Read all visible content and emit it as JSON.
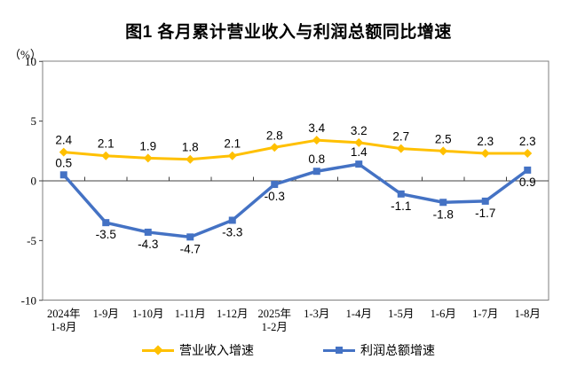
{
  "title": "图1  各月累计营业收入与利润总额同比增速",
  "y_axis": {
    "unit": "（%）",
    "ticks": [
      10,
      5,
      0,
      -5,
      -10
    ]
  },
  "chart_data": {
    "type": "line",
    "title": "图1  各月累计营业收入与利润总额同比增速",
    "xlabel": "",
    "ylabel": "(%)",
    "ylim": [
      -10,
      10
    ],
    "grid": false,
    "legend_position": "bottom",
    "categories": [
      "2024年\n1-8月",
      "1-9月",
      "1-10月",
      "1-11月",
      "1-12月",
      "2025年\n1-2月",
      "1-3月",
      "1-4月",
      "1-5月",
      "1-6月",
      "1-7月",
      "1-8月"
    ],
    "series": [
      {
        "name": "营业收入增速",
        "color": "#FFC000",
        "marker": "diamond",
        "values": [
          2.4,
          2.1,
          1.9,
          1.8,
          2.1,
          2.8,
          3.4,
          3.2,
          2.7,
          2.5,
          2.3,
          2.3
        ],
        "label_positions": [
          "above",
          "above",
          "above",
          "above",
          "above",
          "above",
          "above",
          "above",
          "above",
          "above",
          "above",
          "above"
        ]
      },
      {
        "name": "利润总额增速",
        "color": "#4472C4",
        "marker": "square",
        "values": [
          0.5,
          -3.5,
          -4.3,
          -4.7,
          -3.3,
          -0.3,
          0.8,
          1.4,
          -1.1,
          -1.8,
          -1.7,
          0.9
        ],
        "label_positions": [
          "above",
          "below",
          "below",
          "below",
          "below",
          "below",
          "above",
          "above",
          "below",
          "below",
          "below",
          "below"
        ]
      }
    ]
  },
  "colors": {
    "axis": "#7f7f7f",
    "zero_line": "#404040",
    "label": "#000000"
  }
}
